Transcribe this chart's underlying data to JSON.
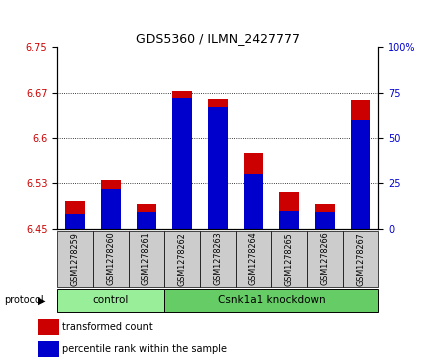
{
  "title": "GDS5360 / ILMN_2427777",
  "samples": [
    "GSM1278259",
    "GSM1278260",
    "GSM1278261",
    "GSM1278262",
    "GSM1278263",
    "GSM1278264",
    "GSM1278265",
    "GSM1278266",
    "GSM1278267"
  ],
  "transformed_count": [
    6.495,
    6.53,
    6.49,
    6.678,
    6.665,
    6.575,
    6.51,
    6.49,
    6.663
  ],
  "percentile_rank": [
    8,
    22,
    9,
    72,
    67,
    30,
    10,
    9,
    60
  ],
  "ylim_left": [
    6.45,
    6.75
  ],
  "ylim_right": [
    0,
    100
  ],
  "yticks_left": [
    6.45,
    6.525,
    6.6,
    6.675,
    6.75
  ],
  "yticks_right": [
    0,
    25,
    50,
    75,
    100
  ],
  "red_color": "#CC0000",
  "blue_color": "#0000CC",
  "control_color": "#99EE99",
  "knockdown_color": "#66CC66",
  "bg_color": "#CCCCCC",
  "control_label": "control",
  "knockdown_label": "Csnk1a1 knockdown",
  "protocol_label": "protocol",
  "legend_red": "transformed count",
  "legend_blue": "percentile rank within the sample",
  "baseline": 6.45,
  "n_control": 3
}
